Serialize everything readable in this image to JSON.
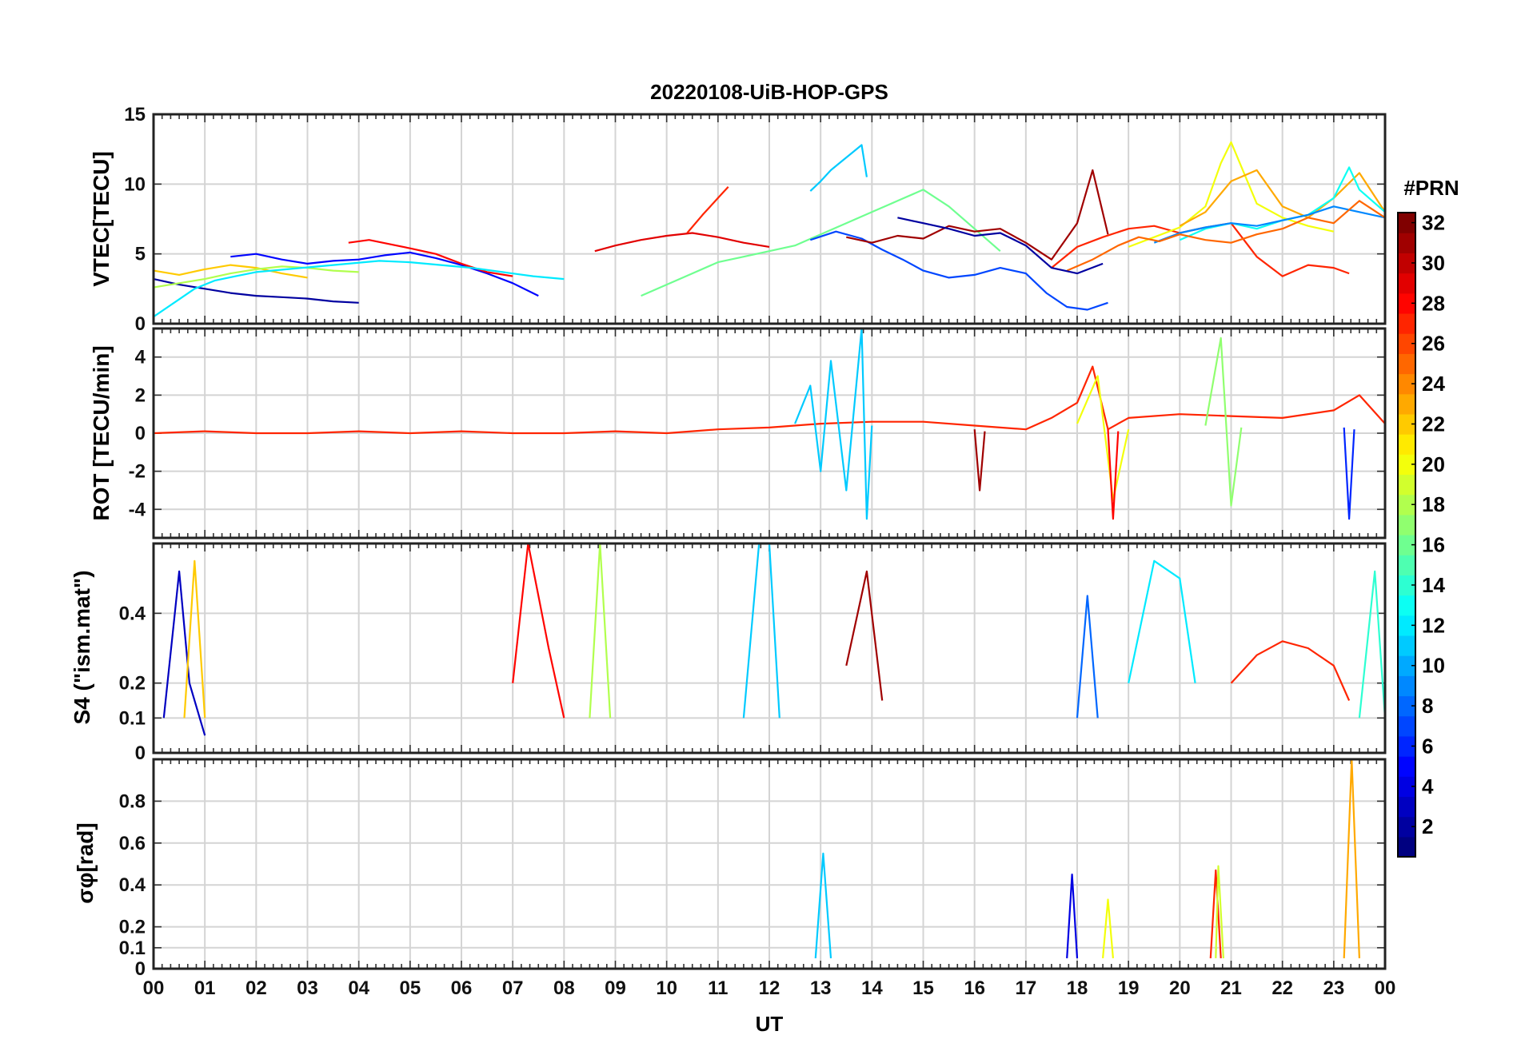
{
  "chart_data": {
    "type": "line",
    "title": "20220108-UiB-HOP-GPS",
    "xlabel": "UT",
    "x_range": [
      0,
      24
    ],
    "x_tick_labels": [
      "00",
      "01",
      "02",
      "03",
      "04",
      "05",
      "06",
      "07",
      "08",
      "09",
      "10",
      "11",
      "12",
      "13",
      "14",
      "15",
      "16",
      "17",
      "18",
      "19",
      "20",
      "21",
      "22",
      "23",
      "00"
    ],
    "grid": true,
    "colorbar": {
      "label": "#PRN",
      "range": [
        1,
        32
      ],
      "ticks": [
        2,
        4,
        6,
        8,
        10,
        12,
        14,
        16,
        18,
        20,
        22,
        24,
        26,
        28,
        30,
        32
      ],
      "colormap": "jet",
      "placement": "right"
    },
    "panels": [
      {
        "name": "vtec",
        "ylabel": "VTEC[TECU]",
        "ylim": [
          0,
          15
        ],
        "yticks": [
          0,
          5,
          10,
          15
        ],
        "series": [
          {
            "prn": 2,
            "x": [
              0.0,
              0.5,
              1.0,
              1.5,
              2.0,
              2.5,
              3.0,
              3.5,
              4.0
            ],
            "y": [
              3.2,
              2.8,
              2.5,
              2.2,
              2.0,
              1.9,
              1.8,
              1.6,
              1.5
            ]
          },
          {
            "prn": 5,
            "x": [
              1.5,
              2.0,
              2.5,
              3.0,
              3.5,
              4.0,
              4.5,
              5.0,
              5.5,
              6.0,
              6.5,
              7.0,
              7.5
            ],
            "y": [
              4.8,
              5.0,
              4.6,
              4.3,
              4.5,
              4.6,
              4.9,
              5.1,
              4.7,
              4.2,
              3.6,
              2.9,
              2.0
            ]
          },
          {
            "prn": 28,
            "x": [
              3.8,
              4.2,
              4.6,
              5.0,
              5.5,
              6.0,
              6.5,
              7.0
            ],
            "y": [
              5.8,
              6.0,
              5.7,
              5.4,
              5.0,
              4.3,
              3.7,
              3.4
            ]
          },
          {
            "prn": 22,
            "x": [
              0.0,
              0.5,
              1.0,
              1.5,
              2.0,
              2.5,
              3.0
            ],
            "y": [
              3.8,
              3.5,
              3.9,
              4.2,
              4.0,
              3.6,
              3.3
            ]
          },
          {
            "prn": 18,
            "x": [
              0.0,
              0.5,
              1.0,
              1.5,
              2.0,
              2.5,
              3.0,
              3.5,
              4.0
            ],
            "y": [
              2.6,
              2.9,
              3.2,
              3.6,
              3.9,
              4.1,
              4.0,
              3.8,
              3.7
            ]
          },
          {
            "prn": 12,
            "x": [
              0.0,
              0.4,
              0.8,
              1.2,
              1.6,
              2.0,
              2.6,
              3.2,
              3.8,
              4.4,
              5.0,
              5.6,
              6.2,
              6.8,
              7.4,
              8.0
            ],
            "y": [
              0.5,
              1.5,
              2.5,
              3.1,
              3.4,
              3.7,
              3.9,
              4.1,
              4.3,
              4.5,
              4.4,
              4.2,
              4.0,
              3.7,
              3.4,
              3.2
            ]
          },
          {
            "prn": 29,
            "x": [
              8.6,
              9.0,
              9.5,
              10.0,
              10.5,
              11.0,
              11.5,
              12.0
            ],
            "y": [
              5.2,
              5.6,
              6.0,
              6.3,
              6.5,
              6.2,
              5.8,
              5.5
            ]
          },
          {
            "prn": 27,
            "x": [
              10.4,
              10.7,
              11.0,
              11.2
            ],
            "y": [
              6.5,
              7.8,
              9.0,
              9.8
            ]
          },
          {
            "prn": 16,
            "x": [
              9.5,
              10.0,
              10.5,
              11.0,
              11.5,
              12.0,
              12.5,
              13.0,
              13.5,
              14.0,
              14.5,
              15.0,
              15.5,
              16.0,
              16.5
            ],
            "y": [
              2.0,
              2.8,
              3.6,
              4.4,
              4.8,
              5.2,
              5.6,
              6.4,
              7.2,
              8.0,
              8.8,
              9.6,
              8.4,
              6.8,
              5.2
            ]
          },
          {
            "prn": 11,
            "x": [
              12.8,
              13.0,
              13.2,
              13.4,
              13.6,
              13.8,
              13.9
            ],
            "y": [
              9.5,
              10.2,
              11.0,
              11.6,
              12.2,
              12.8,
              10.5
            ]
          },
          {
            "prn": 7,
            "x": [
              12.8,
              13.3,
              13.8,
              14.2,
              14.6,
              15.0,
              15.5,
              16.0,
              16.5,
              17.0,
              17.4,
              17.8,
              18.2,
              18.6
            ],
            "y": [
              6.0,
              6.6,
              6.1,
              5.3,
              4.6,
              3.8,
              3.3,
              3.5,
              4.0,
              3.6,
              2.2,
              1.2,
              1.0,
              1.5
            ]
          },
          {
            "prn": 31,
            "x": [
              13.5,
              14.0,
              14.5,
              15.0,
              15.5,
              16.0,
              16.5,
              17.0,
              17.5,
              18.0,
              18.3,
              18.6
            ],
            "y": [
              6.2,
              5.8,
              6.3,
              6.1,
              7.0,
              6.6,
              6.8,
              5.8,
              4.6,
              7.2,
              11.0,
              6.4
            ]
          },
          {
            "prn": 27,
            "x": [
              17.5,
              18.0,
              18.5,
              19.0,
              19.5,
              20.0,
              20.5,
              21.0,
              21.5,
              22.0,
              22.5,
              23.0,
              23.3
            ],
            "y": [
              4.0,
              5.5,
              6.2,
              6.8,
              7.0,
              6.5,
              6.9,
              7.2,
              4.8,
              3.4,
              4.2,
              4.0,
              3.6
            ]
          },
          {
            "prn": 20,
            "x": [
              19.0,
              19.5,
              20.0,
              20.5,
              20.8,
              21.0,
              21.5,
              22.0,
              22.5,
              23.0
            ],
            "y": [
              5.5,
              6.2,
              6.9,
              8.4,
              11.5,
              13.0,
              8.6,
              7.6,
              7.0,
              6.6
            ]
          },
          {
            "prn": 23,
            "x": [
              20.0,
              20.5,
              21.0,
              21.5,
              22.0,
              22.5,
              23.0,
              23.5,
              24.0
            ],
            "y": [
              7.0,
              8.0,
              10.2,
              11.0,
              8.4,
              7.6,
              9.0,
              10.8,
              8.0
            ]
          },
          {
            "prn": 13,
            "x": [
              20.0,
              20.5,
              21.0,
              21.5,
              22.0,
              22.5,
              23.0,
              23.3,
              23.5,
              24.0
            ],
            "y": [
              6.0,
              6.8,
              7.2,
              6.8,
              7.4,
              7.8,
              9.0,
              11.2,
              9.6,
              8.0
            ]
          },
          {
            "prn": 9,
            "x": [
              19.5,
              20.0,
              20.5,
              21.0,
              21.5,
              22.0,
              22.5,
              23.0,
              23.5,
              24.0
            ],
            "y": [
              5.8,
              6.5,
              6.9,
              7.2,
              7.0,
              7.4,
              7.8,
              8.4,
              8.0,
              7.6
            ]
          },
          {
            "prn": 25,
            "x": [
              17.8,
              18.3,
              18.8,
              19.2,
              19.6,
              20.0,
              20.5,
              21.0,
              21.5,
              22.0,
              22.5,
              23.0,
              23.5,
              24.0
            ],
            "y": [
              3.8,
              4.6,
              5.6,
              6.2,
              5.9,
              6.4,
              6.0,
              5.8,
              6.4,
              6.8,
              7.6,
              7.2,
              8.8,
              7.6
            ]
          },
          {
            "prn": 2,
            "x": [
              14.5,
              15.0,
              15.5,
              16.0,
              16.5,
              17.0,
              17.5,
              18.0,
              18.5
            ],
            "y": [
              7.6,
              7.2,
              6.8,
              6.3,
              6.5,
              5.6,
              4.0,
              3.6,
              4.3
            ]
          }
        ]
      },
      {
        "name": "rot",
        "ylabel": "ROT [TECU/min]",
        "ylim": [
          -5.5,
          5.5
        ],
        "yticks": [
          -4,
          -2,
          0,
          2,
          4
        ],
        "series": [
          {
            "prn": 27,
            "x": [
              0,
              1,
              2,
              3,
              4,
              5,
              6,
              7,
              8,
              9,
              10,
              11,
              12,
              13,
              14,
              15,
              16,
              17,
              17.5,
              18.0,
              18.3,
              18.6,
              19,
              20,
              21,
              22,
              23,
              23.5,
              24
            ],
            "y": [
              0,
              0.1,
              0,
              0,
              0.1,
              0,
              0.1,
              0,
              0,
              0.1,
              0,
              0.2,
              0.3,
              0.5,
              0.6,
              0.6,
              0.4,
              0.2,
              0.8,
              1.6,
              3.5,
              0.2,
              0.8,
              1.0,
              0.9,
              0.8,
              1.2,
              2.0,
              0.5
            ]
          },
          {
            "prn": 11,
            "x": [
              12.5,
              12.8,
              13.0,
              13.2,
              13.5,
              13.8,
              13.9,
              14.0
            ],
            "y": [
              0.5,
              2.5,
              -2.0,
              3.8,
              -3.0,
              5.5,
              -4.5,
              0.4
            ]
          },
          {
            "prn": 20,
            "x": [
              18.0,
              18.4,
              18.7,
              19.0
            ],
            "y": [
              0.5,
              3.0,
              -3.5,
              0.2
            ]
          },
          {
            "prn": 17,
            "x": [
              20.5,
              20.8,
              21.0,
              21.2
            ],
            "y": [
              0.4,
              5.0,
              -3.8,
              0.3
            ]
          },
          {
            "prn": 28,
            "x": [
              18.6,
              18.7,
              18.8
            ],
            "y": [
              0.2,
              -4.5,
              0.1
            ]
          },
          {
            "prn": 31,
            "x": [
              16.0,
              16.1,
              16.2
            ],
            "y": [
              0.2,
              -3.0,
              0.1
            ]
          },
          {
            "prn": 6,
            "x": [
              23.2,
              23.3,
              23.4
            ],
            "y": [
              0.3,
              -4.5,
              0.2
            ]
          }
        ]
      },
      {
        "name": "s4",
        "ylabel": "S4 (\"ism.mat\")",
        "ylim": [
          0,
          0.6
        ],
        "yticks": [
          0,
          0.1,
          0.2,
          0.4
        ],
        "y_tick_labels": [
          "0",
          "0.1",
          "0.2",
          "0.4"
        ],
        "series": [
          {
            "prn": 3,
            "x": [
              0.2,
              0.4,
              0.5,
              0.7,
              1.0
            ],
            "y": [
              0.1,
              0.38,
              0.52,
              0.2,
              0.05
            ]
          },
          {
            "prn": 22,
            "x": [
              0.6,
              0.8,
              1.0
            ],
            "y": [
              0.1,
              0.55,
              0.1
            ]
          },
          {
            "prn": 28,
            "x": [
              7.0,
              7.3,
              7.5,
              7.7,
              8.0
            ],
            "y": [
              0.2,
              0.6,
              0.45,
              0.3,
              0.1
            ]
          },
          {
            "prn": 18,
            "x": [
              8.5,
              8.7,
              8.9
            ],
            "y": [
              0.1,
              0.6,
              0.1
            ]
          },
          {
            "prn": 11,
            "x": [
              11.5,
              11.8,
              12.0,
              12.2
            ],
            "y": [
              0.1,
              0.6,
              0.6,
              0.1
            ]
          },
          {
            "prn": 31,
            "x": [
              13.5,
              13.9,
              14.2
            ],
            "y": [
              0.25,
              0.52,
              0.15
            ]
          },
          {
            "prn": 8,
            "x": [
              18.0,
              18.2,
              18.4
            ],
            "y": [
              0.1,
              0.45,
              0.1
            ]
          },
          {
            "prn": 12,
            "x": [
              19.0,
              19.5,
              20.0,
              20.3
            ],
            "y": [
              0.2,
              0.55,
              0.5,
              0.2
            ]
          },
          {
            "prn": 27,
            "x": [
              21.0,
              21.5,
              22.0,
              22.5,
              23.0,
              23.3
            ],
            "y": [
              0.2,
              0.28,
              0.32,
              0.3,
              0.25,
              0.15
            ]
          },
          {
            "prn": 14,
            "x": [
              23.5,
              23.8,
              24.0
            ],
            "y": [
              0.1,
              0.52,
              0.1
            ]
          }
        ]
      },
      {
        "name": "sigma_phi",
        "ylabel": "σφ[rad]",
        "ylim": [
          0,
          1.0
        ],
        "yticks": [
          0,
          0.1,
          0.2,
          0.4,
          0.6,
          0.8
        ],
        "y_tick_labels": [
          "0",
          "0.1",
          "0.2",
          "0.4",
          "0.6",
          "0.8"
        ],
        "series": [
          {
            "prn": 11,
            "x": [
              12.9,
              13.05,
              13.2
            ],
            "y": [
              0.05,
              0.55,
              0.05
            ]
          },
          {
            "prn": 4,
            "x": [
              17.8,
              17.9,
              18.0
            ],
            "y": [
              0.05,
              0.45,
              0.05
            ]
          },
          {
            "prn": 20,
            "x": [
              18.5,
              18.6,
              18.7
            ],
            "y": [
              0.05,
              0.33,
              0.05
            ]
          },
          {
            "prn": 27,
            "x": [
              20.6,
              20.7,
              20.8
            ],
            "y": [
              0.05,
              0.47,
              0.05
            ]
          },
          {
            "prn": 23,
            "x": [
              23.2,
              23.35,
              23.5
            ],
            "y": [
              0.05,
              1.0,
              0.05
            ]
          },
          {
            "prn": 19,
            "x": [
              20.7,
              20.75,
              20.85
            ],
            "y": [
              0.05,
              0.49,
              0.05
            ]
          }
        ]
      }
    ]
  }
}
